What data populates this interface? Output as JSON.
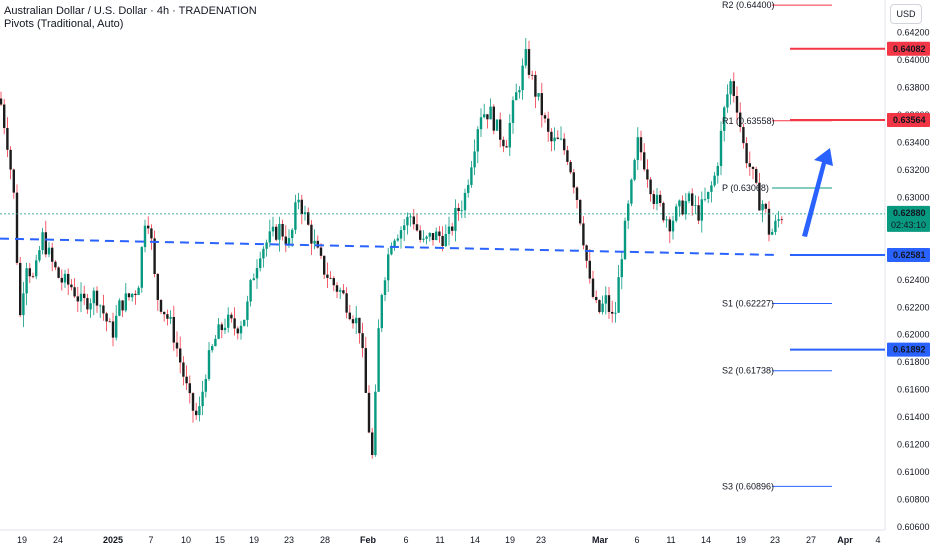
{
  "header": {
    "title": "Australian Dollar / U.S. Dollar · 4h · TRADENATION",
    "indicator": "Pivots (Traditional, Auto)"
  },
  "currency_button": "USD",
  "chart_data": {
    "type": "candlestick",
    "ylim": [
      0.606,
      0.6435
    ],
    "y_ticks": [
      "0.64200",
      "0.64000",
      "0.63800",
      "0.63600",
      "0.63400",
      "0.63200",
      "0.63000",
      "0.62800",
      "0.62600",
      "0.62400",
      "0.62200",
      "0.62000",
      "0.61800",
      "0.61600",
      "0.61400",
      "0.61200",
      "0.61000",
      "0.60800",
      "0.60600"
    ],
    "x_ticks": [
      "19",
      "24",
      "2025",
      "7",
      "10",
      "15",
      "19",
      "23",
      "28",
      "Feb",
      "6",
      "11",
      "14",
      "19",
      "23",
      "Mar",
      "6",
      "11",
      "14",
      "19",
      "23",
      "27",
      "Apr",
      "4"
    ],
    "price_path": [
      [
        0,
        0.6372
      ],
      [
        8,
        0.6338
      ],
      [
        14,
        0.63
      ],
      [
        20,
        0.6212
      ],
      [
        26,
        0.6255
      ],
      [
        34,
        0.6238
      ],
      [
        42,
        0.6272
      ],
      [
        52,
        0.6252
      ],
      [
        60,
        0.624
      ],
      [
        72,
        0.6235
      ],
      [
        82,
        0.6222
      ],
      [
        96,
        0.623
      ],
      [
        104,
        0.6215
      ],
      [
        112,
        0.62
      ],
      [
        120,
        0.6222
      ],
      [
        130,
        0.6228
      ],
      [
        138,
        0.6235
      ],
      [
        146,
        0.6292
      ],
      [
        150,
        0.6278
      ],
      [
        156,
        0.623
      ],
      [
        164,
        0.6218
      ],
      [
        172,
        0.6205
      ],
      [
        182,
        0.6175
      ],
      [
        190,
        0.615
      ],
      [
        198,
        0.6138
      ],
      [
        206,
        0.6175
      ],
      [
        216,
        0.6198
      ],
      [
        226,
        0.621
      ],
      [
        236,
        0.6205
      ],
      [
        246,
        0.6215
      ],
      [
        252,
        0.624
      ],
      [
        260,
        0.6262
      ],
      [
        270,
        0.627
      ],
      [
        280,
        0.6278
      ],
      [
        290,
        0.6265
      ],
      [
        298,
        0.6302
      ],
      [
        304,
        0.6288
      ],
      [
        312,
        0.627
      ],
      [
        322,
        0.625
      ],
      [
        332,
        0.6238
      ],
      [
        342,
        0.623
      ],
      [
        350,
        0.6218
      ],
      [
        360,
        0.6205
      ],
      [
        366,
        0.6155
      ],
      [
        372,
        0.6108
      ],
      [
        376,
        0.616
      ],
      [
        380,
        0.6225
      ],
      [
        386,
        0.625
      ],
      [
        392,
        0.6272
      ],
      [
        402,
        0.6278
      ],
      [
        412,
        0.6288
      ],
      [
        422,
        0.6265
      ],
      [
        432,
        0.6272
      ],
      [
        440,
        0.6272
      ],
      [
        448,
        0.627
      ],
      [
        456,
        0.6288
      ],
      [
        464,
        0.6298
      ],
      [
        472,
        0.633
      ],
      [
        480,
        0.6362
      ],
      [
        490,
        0.6362
      ],
      [
        498,
        0.6348
      ],
      [
        506,
        0.634
      ],
      [
        514,
        0.6368
      ],
      [
        520,
        0.6385
      ],
      [
        526,
        0.6402
      ],
      [
        534,
        0.638
      ],
      [
        542,
        0.6362
      ],
      [
        550,
        0.634
      ],
      [
        560,
        0.634
      ],
      [
        568,
        0.633
      ],
      [
        576,
        0.6305
      ],
      [
        584,
        0.6268
      ],
      [
        590,
        0.6235
      ],
      [
        598,
        0.6215
      ],
      [
        606,
        0.6225
      ],
      [
        614,
        0.6208
      ],
      [
        622,
        0.6262
      ],
      [
        630,
        0.63
      ],
      [
        638,
        0.634
      ],
      [
        646,
        0.6322
      ],
      [
        654,
        0.63
      ],
      [
        662,
        0.629
      ],
      [
        670,
        0.6282
      ],
      [
        678,
        0.629
      ],
      [
        688,
        0.6298
      ],
      [
        698,
        0.6288
      ],
      [
        708,
        0.63
      ],
      [
        716,
        0.6318
      ],
      [
        724,
        0.6362
      ],
      [
        730,
        0.6385
      ],
      [
        736,
        0.6372
      ],
      [
        744,
        0.6335
      ],
      [
        752,
        0.6318
      ],
      [
        758,
        0.6298
      ],
      [
        764,
        0.6295
      ],
      [
        770,
        0.6272
      ],
      [
        776,
        0.628
      ],
      [
        782,
        0.6288
      ]
    ],
    "pivots": [
      {
        "label": "R2 (0.64400)",
        "value": 0.644,
        "color": "#f23645"
      },
      {
        "label": "R1 (0.63558)",
        "value": 0.63558,
        "color": "#f23645"
      },
      {
        "label": "P (0.63068)",
        "value": 0.63068,
        "color": "#089981"
      },
      {
        "label": "S1 (0.62227)",
        "value": 0.62227,
        "color": "#2962ff"
      },
      {
        "label": "S2 (0.61738)",
        "value": 0.61738,
        "color": "#2962ff"
      },
      {
        "label": "S3 (0.60896)",
        "value": 0.60896,
        "color": "#2962ff"
      }
    ],
    "levels": [
      {
        "value": 0.64082,
        "label": "0.64082",
        "color": "#f23645"
      },
      {
        "value": 0.63564,
        "label": "0.63564",
        "color": "#f23645"
      },
      {
        "value": 0.62581,
        "label": "0.62581",
        "color": "#2962ff"
      },
      {
        "value": 0.61892,
        "label": "0.61892",
        "color": "#2962ff"
      }
    ],
    "trendline": {
      "from": 0.627,
      "to": 0.62581,
      "color": "#2962ff"
    },
    "current_price": {
      "value": 0.6288,
      "label": "0.62880",
      "countdown": "02:43:10",
      "color": "#089981"
    },
    "arrow_color": "#2962ff"
  }
}
